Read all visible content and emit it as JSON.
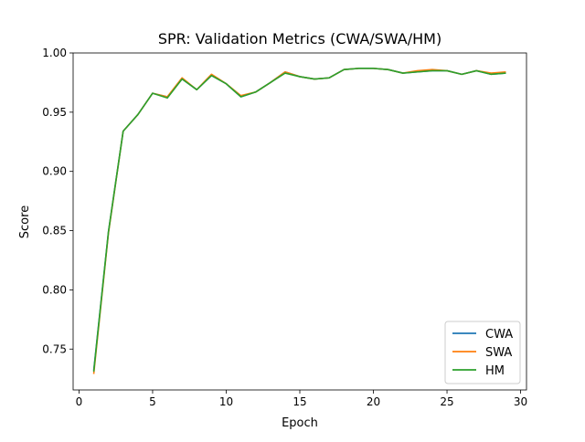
{
  "chart_data": {
    "type": "line",
    "title": "SPR: Validation Metrics (CWA/SWA/HM)",
    "xlabel": "Epoch",
    "ylabel": "Score",
    "xlim": [
      -0.4,
      30.4
    ],
    "ylim": [
      0.7155,
      1.0
    ],
    "x_ticks": [
      0,
      5,
      10,
      15,
      20,
      25,
      30
    ],
    "y_ticks": [
      0.75,
      0.8,
      0.85,
      0.9,
      0.95,
      1.0
    ],
    "grid": false,
    "legend_position": "bottom-right",
    "x": [
      1,
      2,
      3,
      4,
      5,
      6,
      7,
      8,
      9,
      10,
      11,
      12,
      13,
      14,
      15,
      16,
      17,
      18,
      19,
      20,
      21,
      22,
      23,
      24,
      25,
      26,
      27,
      28,
      29
    ],
    "series": [
      {
        "name": "CWA",
        "color": "#1f77b4",
        "values": [
          0.732,
          0.849,
          0.934,
          0.948,
          0.966,
          0.963,
          0.978,
          0.969,
          0.981,
          0.974,
          0.963,
          0.967,
          0.975,
          0.984,
          0.98,
          0.978,
          0.979,
          0.986,
          0.987,
          0.987,
          0.986,
          0.983,
          0.984,
          0.985,
          0.985,
          0.982,
          0.985,
          0.982,
          0.983
        ]
      },
      {
        "name": "SWA",
        "color": "#ff7f0e",
        "values": [
          0.729,
          0.848,
          0.934,
          0.948,
          0.966,
          0.963,
          0.979,
          0.969,
          0.982,
          0.974,
          0.964,
          0.967,
          0.975,
          0.984,
          0.98,
          0.978,
          0.979,
          0.986,
          0.987,
          0.987,
          0.986,
          0.983,
          0.985,
          0.986,
          0.985,
          0.982,
          0.985,
          0.983,
          0.984
        ]
      },
      {
        "name": "HM",
        "color": "#2ca02c",
        "values": [
          0.731,
          0.849,
          0.934,
          0.948,
          0.966,
          0.962,
          0.978,
          0.969,
          0.981,
          0.974,
          0.963,
          0.967,
          0.975,
          0.983,
          0.98,
          0.978,
          0.979,
          0.986,
          0.987,
          0.987,
          0.986,
          0.983,
          0.984,
          0.985,
          0.985,
          0.982,
          0.985,
          0.982,
          0.983
        ]
      }
    ]
  }
}
